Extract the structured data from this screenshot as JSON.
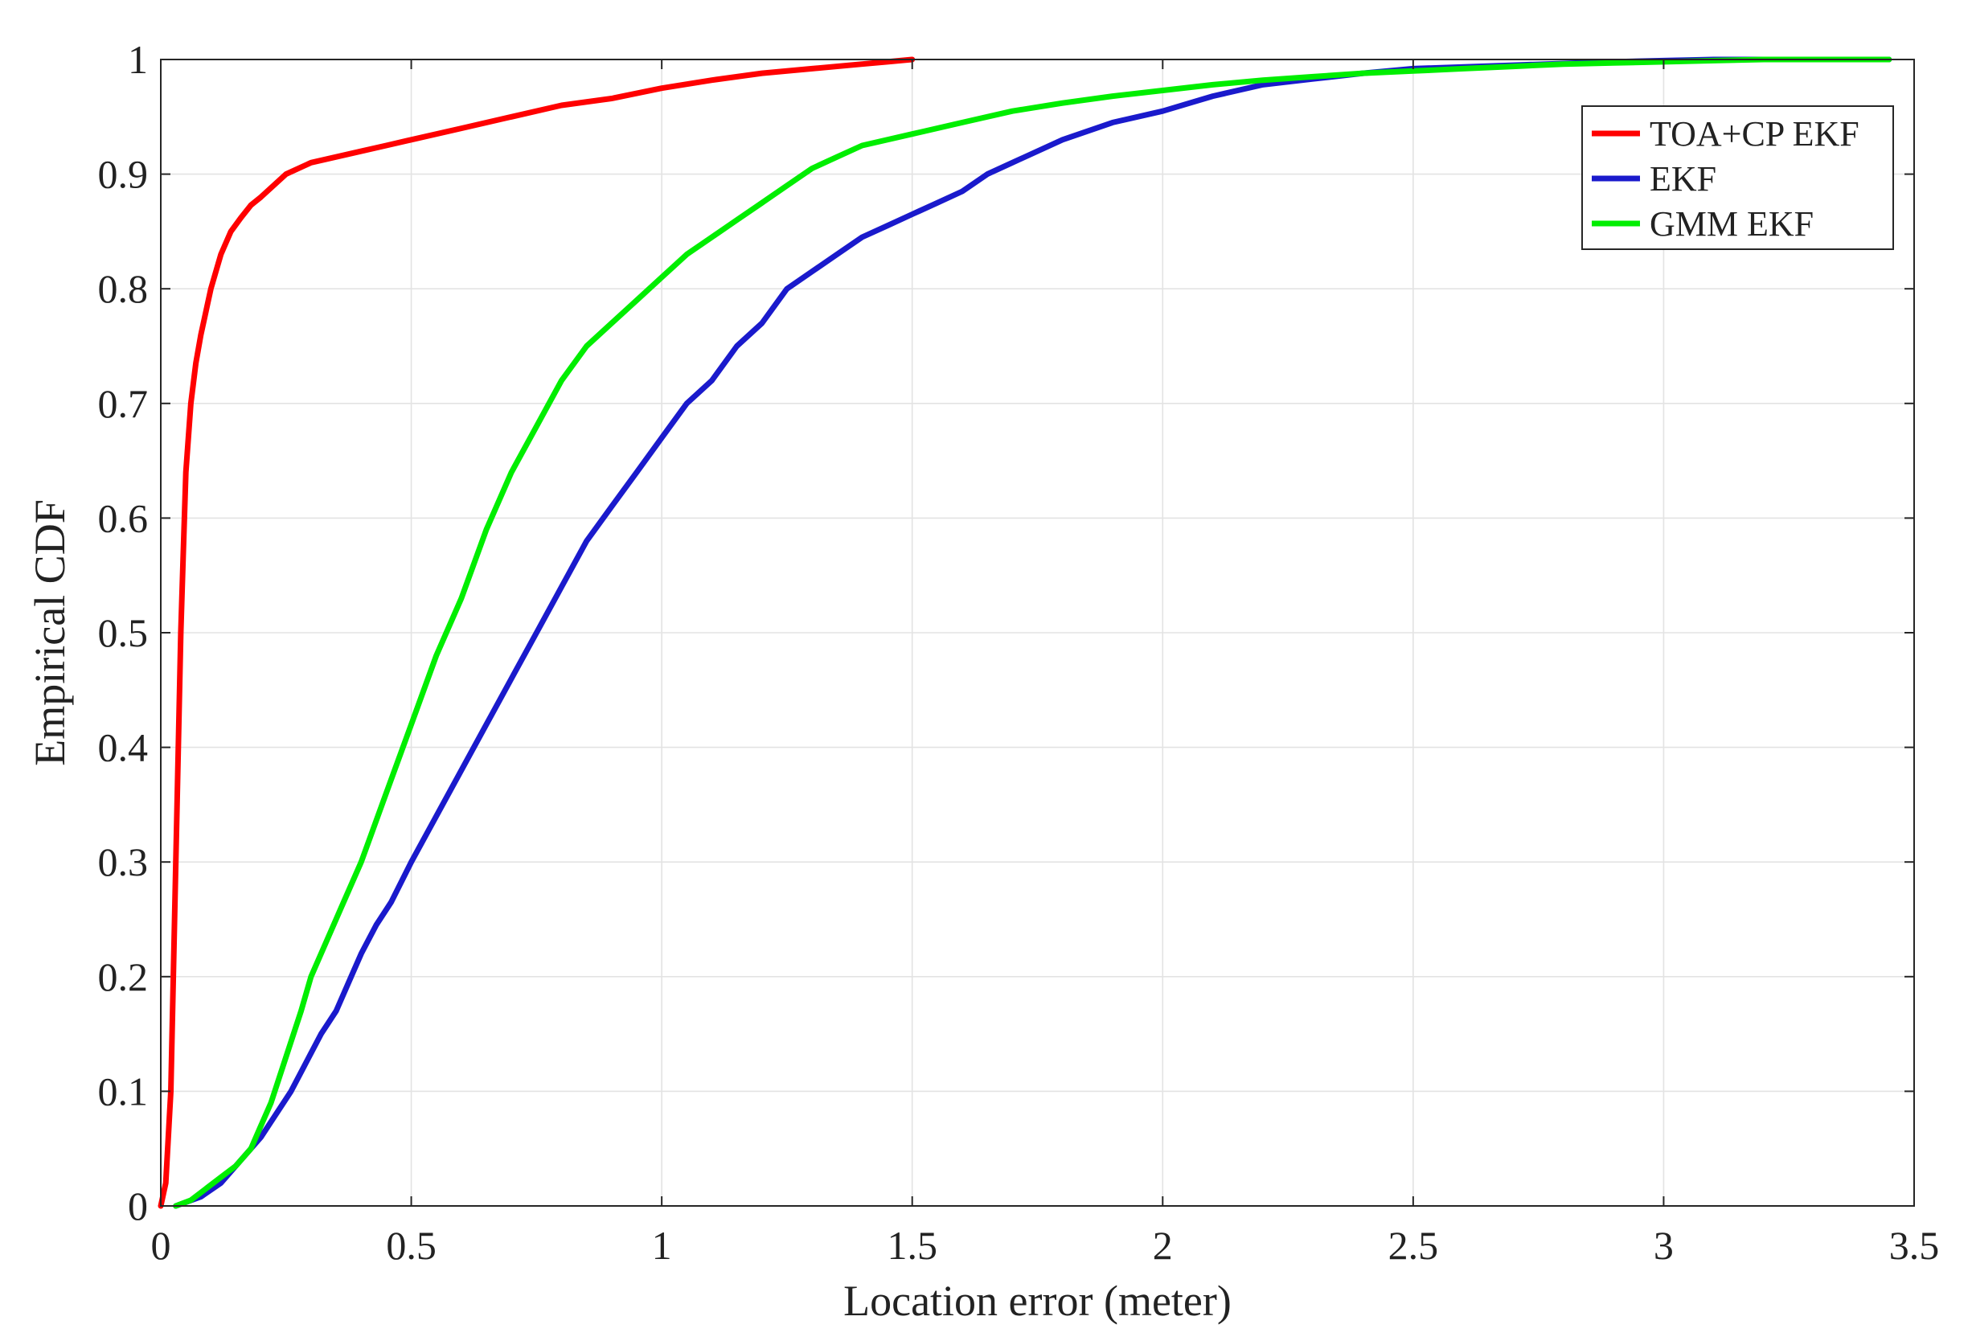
{
  "chart_data": {
    "type": "line",
    "xlabel": "Location error (meter)",
    "ylabel": "Empirical CDF",
    "xlim": [
      0,
      3.5
    ],
    "ylim": [
      0,
      1
    ],
    "xticks": [
      0,
      0.5,
      1,
      1.5,
      2,
      2.5,
      3,
      3.5
    ],
    "xtick_labels": [
      "0",
      "0.5",
      "1",
      "1.5",
      "2",
      "2.5",
      "3",
      "3.5"
    ],
    "yticks": [
      0,
      0.1,
      0.2,
      0.3,
      0.4,
      0.5,
      0.6,
      0.7,
      0.8,
      0.9,
      1
    ],
    "ytick_labels": [
      "0",
      "0.1",
      "0.2",
      "0.3",
      "0.4",
      "0.5",
      "0.6",
      "0.7",
      "0.8",
      "0.9",
      "1"
    ],
    "grid": true,
    "legend_position": "top-right",
    "series": [
      {
        "name": "TOA+CP EKF",
        "color": "#ff0000",
        "x": [
          0,
          0.01,
          0.02,
          0.025,
          0.03,
          0.035,
          0.04,
          0.045,
          0.05,
          0.06,
          0.07,
          0.08,
          0.09,
          0.1,
          0.12,
          0.14,
          0.16,
          0.18,
          0.2,
          0.25,
          0.3,
          0.35,
          0.4,
          0.45,
          0.5,
          0.6,
          0.7,
          0.8,
          0.9,
          1.0,
          1.1,
          1.2,
          1.3,
          1.4,
          1.45,
          1.5
        ],
        "y": [
          0,
          0.02,
          0.1,
          0.2,
          0.3,
          0.4,
          0.5,
          0.57,
          0.64,
          0.7,
          0.735,
          0.76,
          0.78,
          0.8,
          0.83,
          0.85,
          0.862,
          0.873,
          0.88,
          0.9,
          0.91,
          0.915,
          0.92,
          0.925,
          0.93,
          0.94,
          0.95,
          0.96,
          0.966,
          0.975,
          0.982,
          0.988,
          0.992,
          0.996,
          0.998,
          1.0
        ]
      },
      {
        "name": "EKF",
        "color": "#1a1acc",
        "x": [
          0.03,
          0.08,
          0.12,
          0.15,
          0.18,
          0.2,
          0.23,
          0.26,
          0.29,
          0.32,
          0.35,
          0.38,
          0.4,
          0.43,
          0.46,
          0.5,
          0.55,
          0.6,
          0.65,
          0.7,
          0.75,
          0.8,
          0.85,
          0.9,
          0.95,
          1.0,
          1.05,
          1.1,
          1.15,
          1.2,
          1.25,
          1.3,
          1.35,
          1.4,
          1.45,
          1.5,
          1.55,
          1.6,
          1.65,
          1.7,
          1.8,
          1.9,
          2.0,
          2.1,
          2.2,
          2.3,
          2.4,
          2.5,
          2.7,
          2.9,
          3.0,
          3.1,
          3.3,
          3.45
        ],
        "y": [
          0,
          0.008,
          0.02,
          0.035,
          0.05,
          0.06,
          0.08,
          0.1,
          0.125,
          0.15,
          0.17,
          0.2,
          0.22,
          0.245,
          0.265,
          0.3,
          0.34,
          0.38,
          0.42,
          0.46,
          0.5,
          0.54,
          0.58,
          0.61,
          0.64,
          0.67,
          0.7,
          0.72,
          0.75,
          0.77,
          0.8,
          0.815,
          0.83,
          0.845,
          0.855,
          0.865,
          0.875,
          0.885,
          0.9,
          0.91,
          0.93,
          0.945,
          0.955,
          0.968,
          0.978,
          0.983,
          0.988,
          0.992,
          0.995,
          0.998,
          0.999,
          1.0,
          1.0,
          1.0
        ]
      },
      {
        "name": "GMM EKF",
        "color": "#00ee00",
        "x": [
          0.03,
          0.06,
          0.09,
          0.12,
          0.15,
          0.18,
          0.2,
          0.22,
          0.25,
          0.28,
          0.3,
          0.33,
          0.36,
          0.4,
          0.45,
          0.5,
          0.55,
          0.6,
          0.65,
          0.7,
          0.75,
          0.8,
          0.85,
          0.9,
          0.95,
          1.0,
          1.05,
          1.1,
          1.15,
          1.2,
          1.25,
          1.3,
          1.35,
          1.4,
          1.5,
          1.6,
          1.7,
          1.8,
          1.9,
          2.0,
          2.1,
          2.2,
          2.3,
          2.4,
          2.5,
          2.6,
          2.7,
          2.8,
          2.9,
          3.0,
          3.1,
          3.2,
          3.3,
          3.45
        ],
        "y": [
          0,
          0.005,
          0.015,
          0.025,
          0.035,
          0.05,
          0.07,
          0.09,
          0.13,
          0.17,
          0.2,
          0.23,
          0.26,
          0.3,
          0.36,
          0.42,
          0.48,
          0.53,
          0.59,
          0.64,
          0.68,
          0.72,
          0.75,
          0.77,
          0.79,
          0.81,
          0.83,
          0.845,
          0.86,
          0.875,
          0.89,
          0.905,
          0.915,
          0.925,
          0.935,
          0.945,
          0.955,
          0.962,
          0.968,
          0.973,
          0.978,
          0.982,
          0.985,
          0.988,
          0.99,
          0.992,
          0.994,
          0.996,
          0.997,
          0.998,
          0.999,
          1.0,
          1.0,
          1.0
        ]
      }
    ]
  }
}
